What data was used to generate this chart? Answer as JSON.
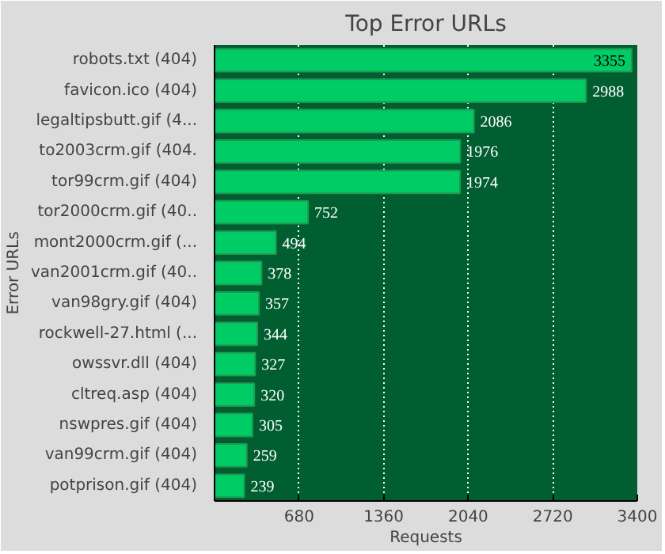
{
  "chart_data": {
    "type": "bar",
    "orientation": "horizontal",
    "title": "Top Error URLs",
    "xlabel": "Requests",
    "ylabel": "Error URLs",
    "categories": [
      "robots.txt (404)",
      "favicon.ico (404)",
      "legaltipsbutt.gif (4...",
      "to2003crm.gif (404.",
      "tor99crm.gif (404)",
      "tor2000crm.gif (40..",
      "mont2000crm.gif (...",
      "van2001crm.gif (40..",
      "van98gry.gif (404)",
      "rockwell-27.html (...",
      "owssvr.dll (404)",
      "cltreq.asp (404)",
      "nswpres.gif (404)",
      "van99crm.gif (404)",
      "potprison.gif (404)"
    ],
    "values": [
      3355,
      2988,
      2086,
      1976,
      1974,
      752,
      494,
      378,
      357,
      344,
      327,
      320,
      305,
      259,
      239
    ],
    "color": "#00cc66",
    "data_labels": true,
    "grid": "x",
    "xlim": [
      0,
      3400
    ],
    "xticks": [
      {
        "value": 0,
        "label": null
      },
      680,
      1360,
      2040,
      2720,
      3400
    ]
  }
}
